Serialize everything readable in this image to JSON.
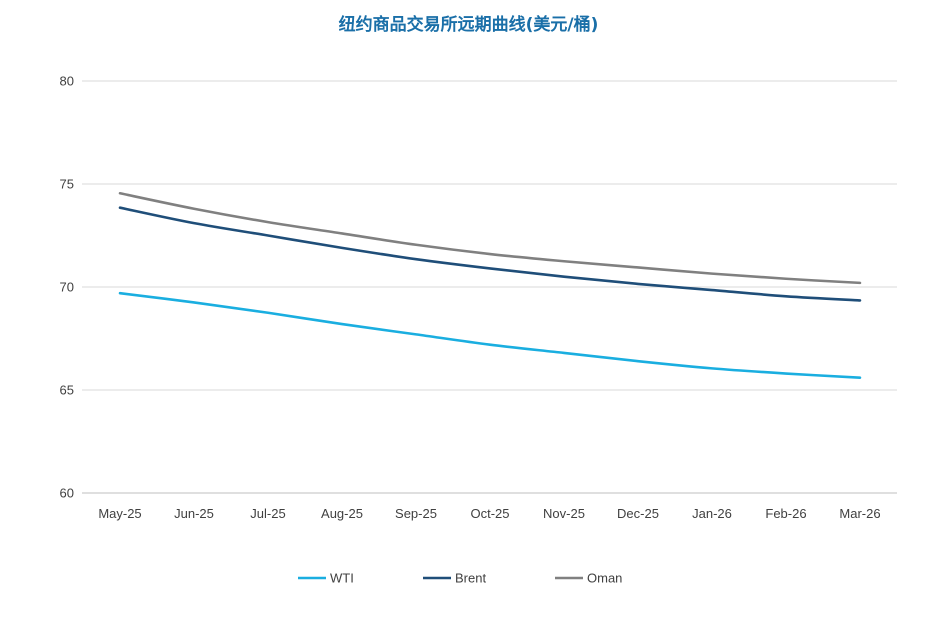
{
  "chart_data": {
    "type": "line",
    "title": "纽约商品交易所远期曲线(美元/桶)",
    "xlabel": "",
    "ylabel": "",
    "categories": [
      "May-25",
      "Jun-25",
      "Jul-25",
      "Aug-25",
      "Sep-25",
      "Oct-25",
      "Nov-25",
      "Dec-25",
      "Jan-26",
      "Feb-26",
      "Mar-26"
    ],
    "ylim": [
      60,
      80
    ],
    "yticks": [
      60,
      65,
      70,
      75,
      80
    ],
    "grid": true,
    "legend_position": "bottom",
    "series": [
      {
        "name": "WTI",
        "color": "#1aaee0",
        "values": [
          69.7,
          69.25,
          68.75,
          68.2,
          67.7,
          67.2,
          66.8,
          66.4,
          66.05,
          65.8,
          65.6
        ]
      },
      {
        "name": "Brent",
        "color": "#1f4e79",
        "values": [
          73.85,
          73.1,
          72.5,
          71.9,
          71.35,
          70.9,
          70.5,
          70.15,
          69.85,
          69.55,
          69.35
        ]
      },
      {
        "name": "Oman",
        "color": "#808080",
        "values": [
          74.55,
          73.8,
          73.15,
          72.6,
          72.05,
          71.6,
          71.25,
          70.95,
          70.65,
          70.4,
          70.2
        ]
      }
    ]
  }
}
